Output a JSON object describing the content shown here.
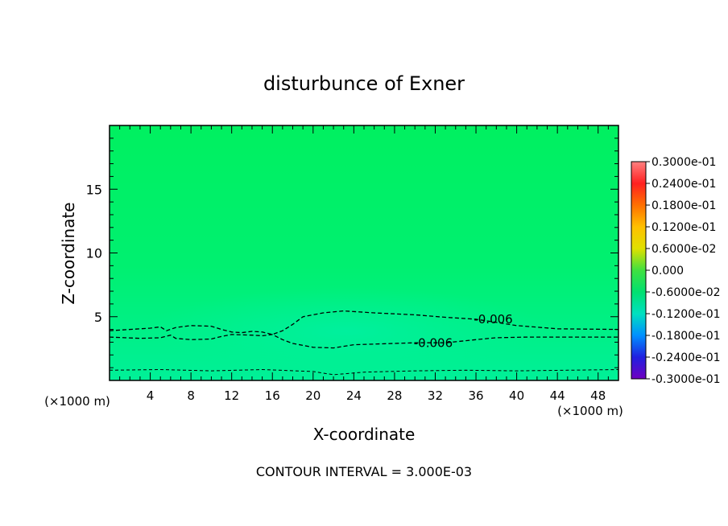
{
  "chart_data": {
    "type": "heatmap",
    "title": "disturbunce of Exner",
    "xlabel": "X-coordinate",
    "ylabel": "Z-coordinate",
    "x_unit_left": "(×1000 m)",
    "x_unit_right": "(×1000 m)",
    "xlim": [
      0,
      50
    ],
    "ylim": [
      0,
      20
    ],
    "x_ticks": [
      4,
      8,
      12,
      16,
      20,
      24,
      28,
      32,
      36,
      40,
      44,
      48
    ],
    "y_ticks": [
      5,
      10,
      15
    ],
    "footer": "CONTOUR INTERVAL = 3.000E-03",
    "colorbar": {
      "labels": [
        "0.3000e-01",
        "0.2400e-01",
        "0.1800e-01",
        "0.1200e-01",
        "0.6000e-02",
        "0.000",
        "-0.6000e-02",
        "-0.1200e-01",
        "-0.1800e-01",
        "-0.2400e-01",
        "-0.3000e-01"
      ],
      "colors": [
        "#ff8080",
        "#ff2020",
        "#ff7000",
        "#ffc000",
        "#e0e000",
        "#40e040",
        "#00e070",
        "#00e0c0",
        "#0090ff",
        "#2020e0",
        "#7000c0"
      ]
    },
    "field_colors": {
      "top": "#00f060",
      "mid": "#00f070",
      "low": "#00f098",
      "core": "#00f0a0"
    },
    "contours": [
      {
        "level": -0.006,
        "label": "-0.006",
        "points": [
          [
            0,
            3.9
          ],
          [
            4,
            4.1
          ],
          [
            5,
            4.2
          ],
          [
            5.6,
            3.9
          ],
          [
            6.5,
            4.15
          ],
          [
            8,
            4.3
          ],
          [
            10,
            4.25
          ],
          [
            11,
            4.0
          ],
          [
            12,
            3.8
          ],
          [
            13,
            3.75
          ],
          [
            14,
            3.85
          ],
          [
            15,
            3.8
          ],
          [
            16,
            3.6
          ],
          [
            17,
            3.9
          ],
          [
            18,
            4.4
          ],
          [
            19,
            5.0
          ],
          [
            21,
            5.3
          ],
          [
            23,
            5.45
          ],
          [
            26,
            5.3
          ],
          [
            30,
            5.15
          ],
          [
            33,
            4.95
          ],
          [
            36,
            4.8
          ],
          [
            40,
            4.3
          ],
          [
            44,
            4.05
          ],
          [
            50,
            4.0
          ]
        ]
      },
      {
        "level": -0.006,
        "label": "-0.006",
        "points": [
          [
            0,
            3.4
          ],
          [
            3,
            3.3
          ],
          [
            5,
            3.35
          ],
          [
            6,
            3.55
          ],
          [
            6.5,
            3.3
          ],
          [
            8,
            3.2
          ],
          [
            10,
            3.25
          ],
          [
            11,
            3.45
          ],
          [
            12,
            3.6
          ],
          [
            14,
            3.55
          ],
          [
            15,
            3.5
          ],
          [
            16,
            3.6
          ],
          [
            17,
            3.2
          ],
          [
            18,
            2.9
          ],
          [
            20,
            2.6
          ],
          [
            22,
            2.55
          ],
          [
            24,
            2.8
          ],
          [
            28,
            2.9
          ],
          [
            30,
            2.95
          ],
          [
            33,
            2.95
          ],
          [
            36,
            3.2
          ],
          [
            38,
            3.35
          ],
          [
            41,
            3.4
          ],
          [
            50,
            3.4
          ]
        ]
      },
      {
        "level": -0.003,
        "label": "",
        "points": [
          [
            0,
            0.8
          ],
          [
            5,
            0.85
          ],
          [
            10,
            0.75
          ],
          [
            15,
            0.85
          ],
          [
            20,
            0.7
          ],
          [
            22,
            0.45
          ],
          [
            25,
            0.65
          ],
          [
            30,
            0.75
          ],
          [
            35,
            0.8
          ],
          [
            40,
            0.75
          ],
          [
            45,
            0.8
          ],
          [
            50,
            0.85
          ]
        ]
      }
    ]
  }
}
